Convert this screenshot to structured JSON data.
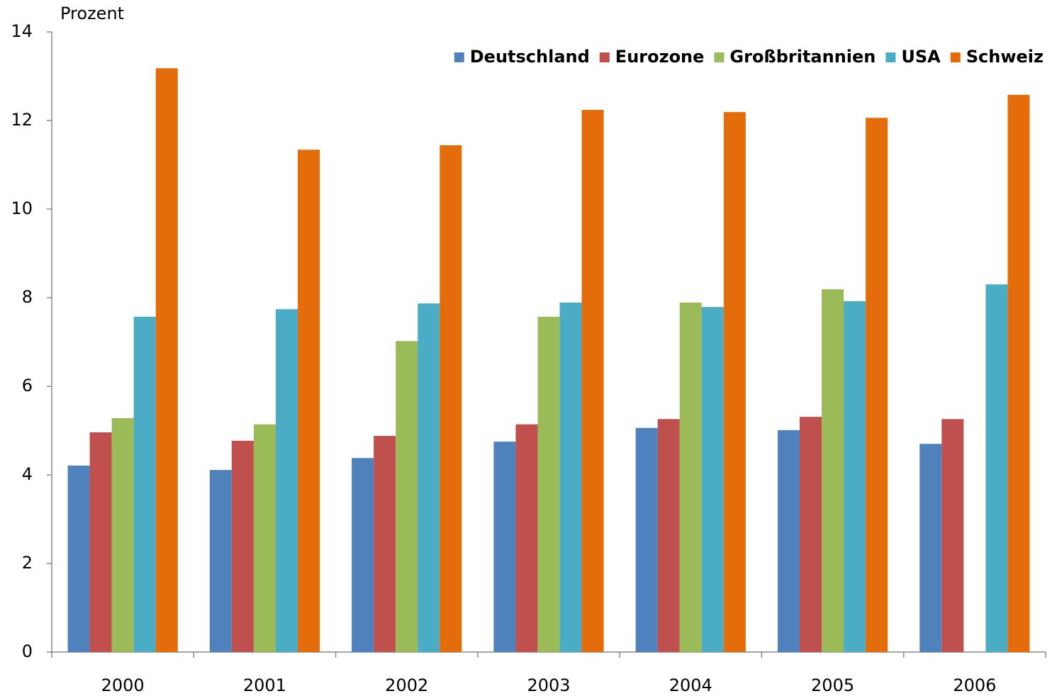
{
  "chart_data": {
    "type": "bar",
    "y_label": "Prozent",
    "categories": [
      "2000",
      "2001",
      "2002",
      "2003",
      "2004",
      "2005",
      "2006"
    ],
    "series": [
      {
        "name": "Deutschland",
        "color": "#4f81bd",
        "values": [
          4.21,
          4.11,
          4.38,
          4.75,
          5.06,
          5.01,
          4.7
        ]
      },
      {
        "name": "Eurozone",
        "color": "#c0504d",
        "values": [
          4.96,
          4.77,
          4.88,
          5.14,
          5.26,
          5.31,
          5.26
        ]
      },
      {
        "name": "Großbritannien",
        "color": "#9bbb59",
        "values": [
          5.28,
          5.14,
          7.02,
          7.57,
          7.89,
          8.19,
          null
        ]
      },
      {
        "name": "USA",
        "color": "#4bacc6",
        "values": [
          7.57,
          7.74,
          7.87,
          7.89,
          7.79,
          7.92,
          8.3
        ]
      },
      {
        "name": "Schweiz",
        "color": "#e46c0a",
        "values": [
          13.18,
          11.34,
          11.44,
          12.24,
          12.19,
          12.06,
          12.58
        ]
      }
    ],
    "ylim": [
      0,
      14
    ],
    "yticks": [
      0,
      2,
      4,
      6,
      8,
      10,
      12,
      14
    ],
    "grid": false,
    "legend": "top-right"
  }
}
